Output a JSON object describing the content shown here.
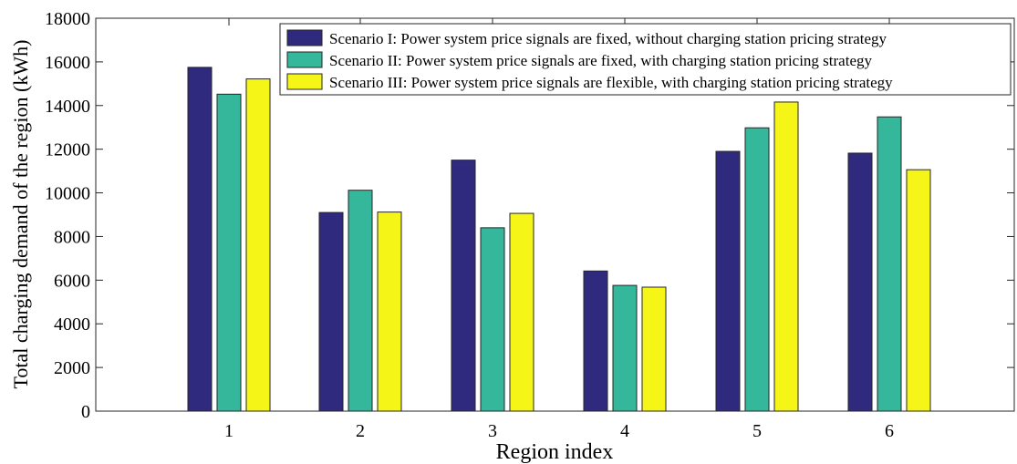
{
  "chart_data": {
    "type": "bar",
    "title": "",
    "xlabel": "Region index",
    "ylabel": "Total charging demand of the region (kWh)",
    "categories": [
      "1",
      "2",
      "3",
      "4",
      "5",
      "6"
    ],
    "ylim": [
      0,
      18000
    ],
    "yticks": [
      "0",
      "2000",
      "4000",
      "6000",
      "8000",
      "10000",
      "12000",
      "14000",
      "16000",
      "18000"
    ],
    "grid": false,
    "legend_position": "top-right",
    "series": [
      {
        "name": "Scenario I: Power system price signals are fixed, without charging station pricing strategy",
        "color": "#302a7e",
        "values": [
          15750,
          9100,
          11500,
          6420,
          11900,
          11820
        ]
      },
      {
        "name": "Scenario II: Power system price signals are fixed, with charging station pricing strategy",
        "color": "#35b79b",
        "values": [
          14520,
          10120,
          8400,
          5760,
          12980,
          13480
        ]
      },
      {
        "name": "Scenario III: Power system price signals are flexible, with charging station pricing strategy",
        "color": "#f5f518",
        "values": [
          15220,
          9120,
          9060,
          5680,
          14160,
          11060
        ]
      }
    ]
  }
}
